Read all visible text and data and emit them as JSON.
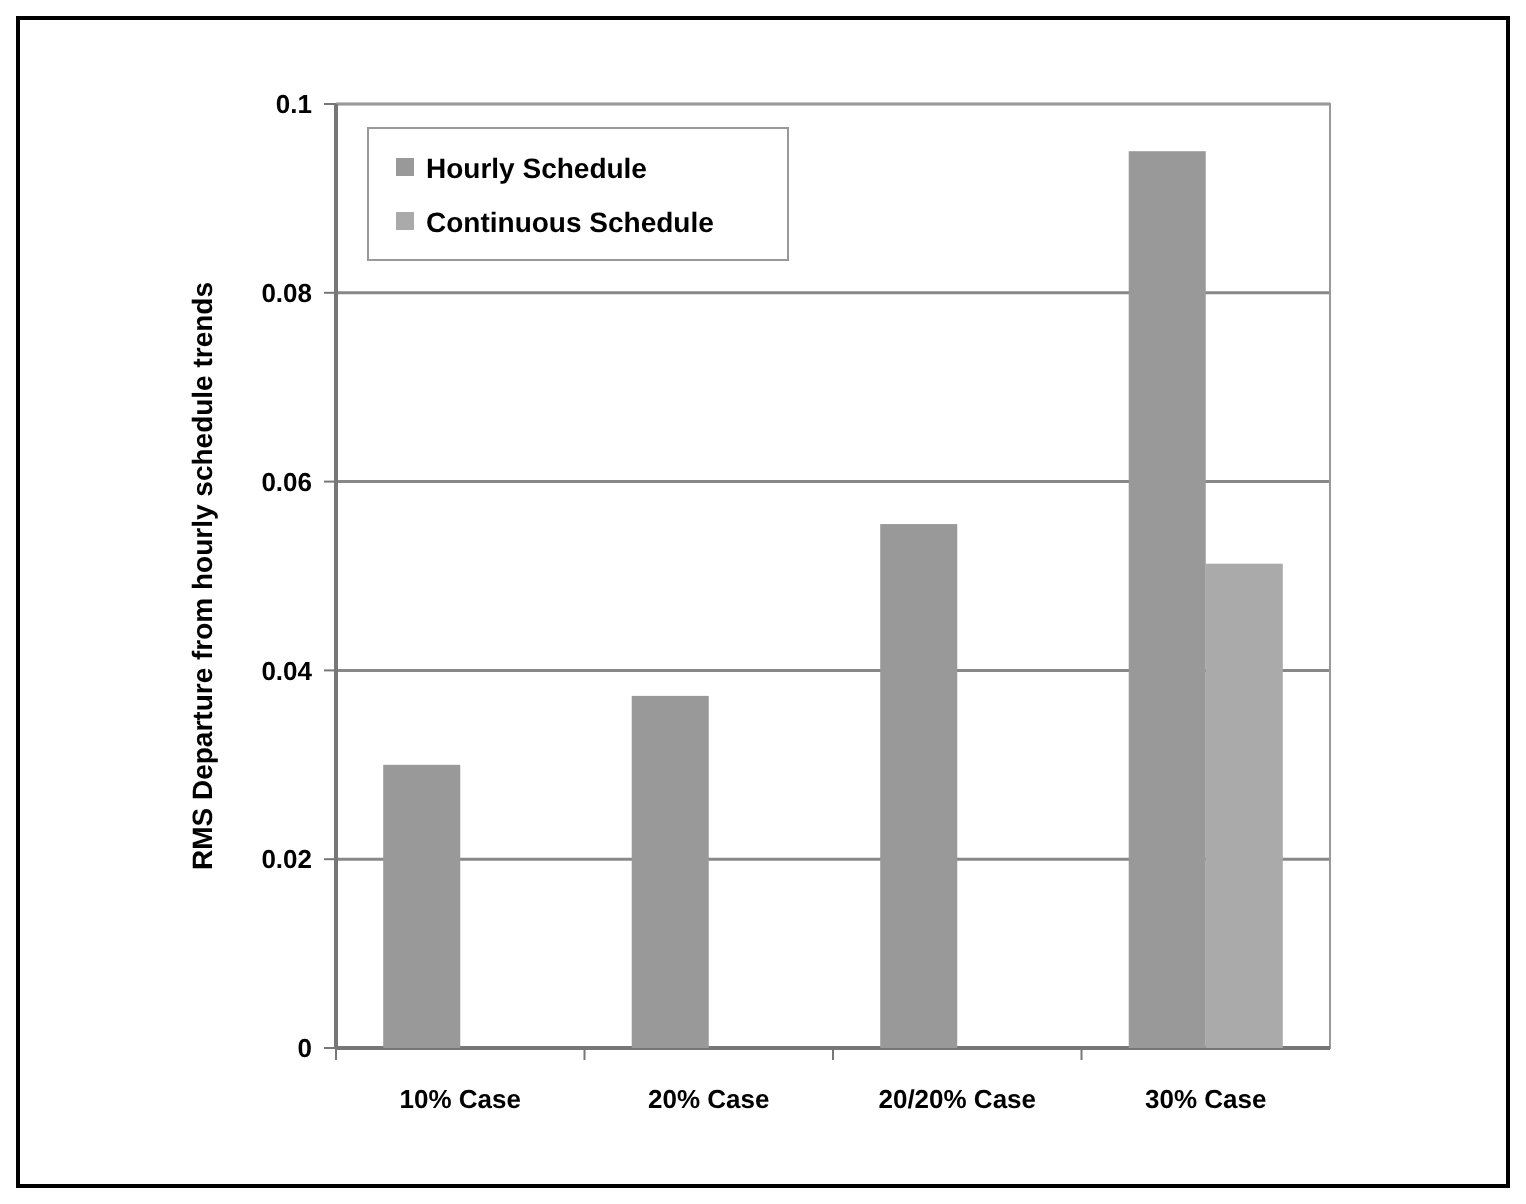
{
  "chart_data": {
    "type": "bar",
    "ylabel": "RMS Departure from hourly schedule trends",
    "categories": [
      "10% Case",
      "20% Case",
      "20/20% Case",
      "30% Case"
    ],
    "series": [
      {
        "name": "Hourly Schedule",
        "color": "#999999",
        "values": [
          0.03,
          0.0373,
          0.0555,
          0.095
        ]
      },
      {
        "name": "Continuous Schedule",
        "color": "#aaaaaa",
        "values": [
          null,
          null,
          null,
          0.0513
        ]
      }
    ],
    "ylim": [
      0,
      0.1
    ],
    "yticks": [
      0,
      0.02,
      0.04,
      0.06,
      0.08,
      0.1
    ],
    "grid": "y",
    "legend": "top left"
  }
}
